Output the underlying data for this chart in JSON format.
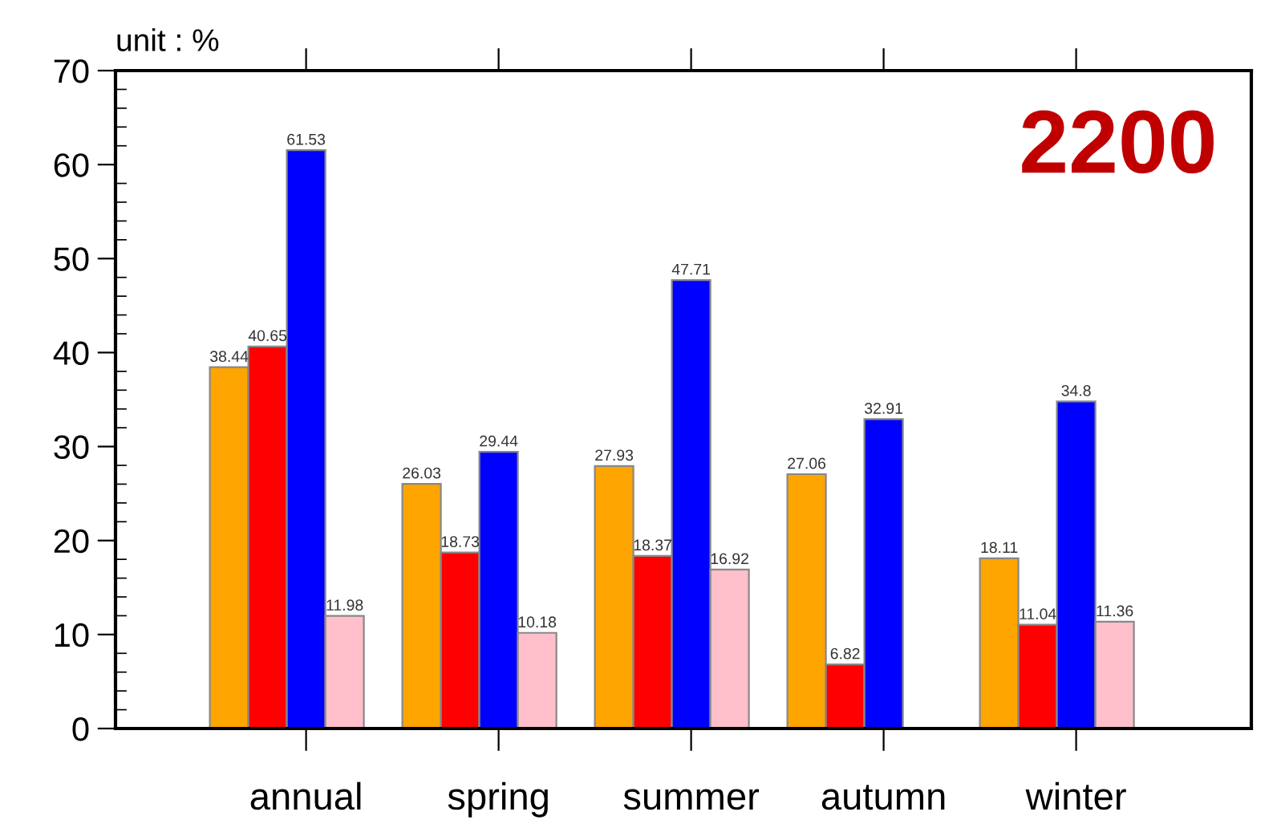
{
  "chart_data": {
    "type": "bar",
    "ylabel": "unit : %",
    "annotations": [
      "2200"
    ],
    "categories": [
      "annual",
      "spring",
      "summer",
      "autumn",
      "winter"
    ],
    "series": [
      {
        "color": "#ffa500",
        "values": [
          38.44,
          26.03,
          27.93,
          27.06,
          18.11
        ]
      },
      {
        "color": "#ff0000",
        "values": [
          40.65,
          18.73,
          18.37,
          6.82,
          11.04
        ]
      },
      {
        "color": "#0000ff",
        "values": [
          61.53,
          29.44,
          47.71,
          32.91,
          34.8
        ]
      },
      {
        "color": "#ffc0cb",
        "values": [
          11.98,
          10.18,
          16.92,
          null,
          11.36
        ]
      }
    ],
    "ylim": [
      0,
      70
    ],
    "yticks": [
      0,
      10,
      20,
      30,
      40,
      50,
      60,
      70
    ],
    "data_labels": true,
    "grid": false,
    "legend": false
  }
}
